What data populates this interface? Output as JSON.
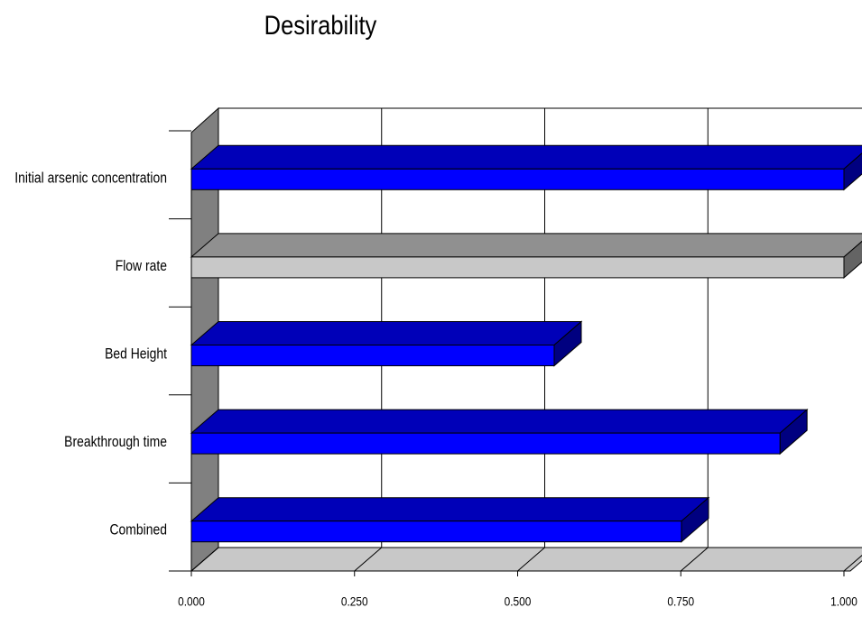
{
  "chart_data": {
    "type": "bar",
    "orientation": "horizontal",
    "title": "Desirability",
    "categories": [
      "Initial arsenic concentration",
      "Flow rate",
      "Bed Height",
      "Breakthrough time",
      "Combined"
    ],
    "values": [
      1.0,
      1.0,
      0.556,
      0.902,
      0.751
    ],
    "colors": [
      "#0000ff",
      "#c8c8c8",
      "#0000ff",
      "#0000ff",
      "#0000ff"
    ],
    "xlim": [
      0,
      1
    ],
    "xticks": [
      {
        "value": 0,
        "label": "0.000"
      },
      {
        "value": 0.25,
        "label": "0.250"
      },
      {
        "value": 0.5,
        "label": "0.500"
      },
      {
        "value": 0.75,
        "label": "0.750"
      },
      {
        "value": 1,
        "label": "1.000"
      }
    ],
    "grid": true
  }
}
